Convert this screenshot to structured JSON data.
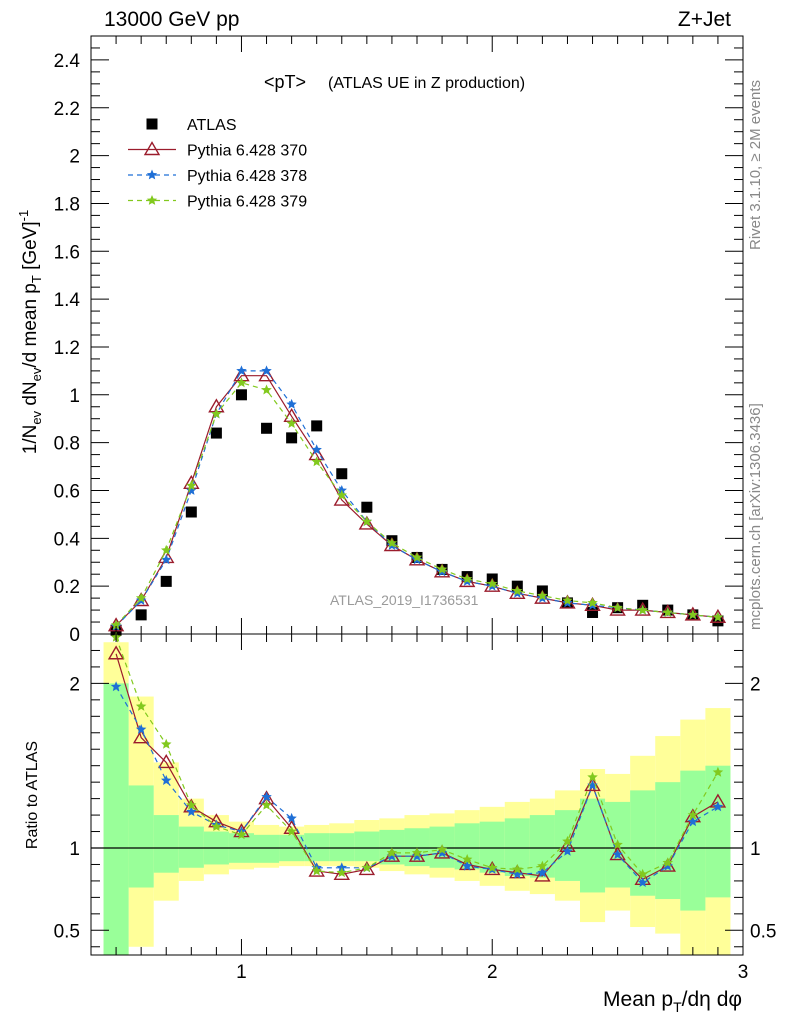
{
  "header": {
    "left": "13000 GeV pp",
    "right": "Z+Jet"
  },
  "side_labels": {
    "rivet": "Rivet 3.1.10, ≥ 2M events",
    "mcplots": "mcplots.cern.ch [arXiv:1306.3436]"
  },
  "watermark": "ATLAS_2019_I1736531",
  "chart_data": [
    {
      "type": "scatter",
      "title_main": "<pT>",
      "title_sub": "(ATLAS UE in Z production)",
      "ylabel": "1/Nₑᵥ dNₑᵥ/d mean pᵀ [GeV]⁻¹",
      "xlim": [
        0.4,
        3.0
      ],
      "ylim": [
        0,
        2.5
      ],
      "yticks": [
        "0",
        "0.2",
        "0.4",
        "0.6",
        "0.8",
        "1",
        "1.2",
        "1.4",
        "1.6",
        "1.8",
        "2",
        "2.2",
        "2.4"
      ],
      "grid": false,
      "legend_position": "top-left",
      "x": [
        0.5,
        0.6,
        0.7,
        0.8,
        0.9,
        1.0,
        1.1,
        1.2,
        1.3,
        1.4,
        1.5,
        1.6,
        1.7,
        1.8,
        1.9,
        2.0,
        2.1,
        2.2,
        2.3,
        2.4,
        2.5,
        2.6,
        2.7,
        2.8,
        2.9
      ],
      "series": [
        {
          "name": "ATLAS",
          "color": "#000000",
          "marker": "square",
          "values": [
            0.016,
            0.08,
            0.22,
            0.51,
            0.84,
            1.0,
            0.86,
            0.82,
            0.87,
            0.67,
            0.53,
            0.39,
            0.32,
            0.27,
            0.24,
            0.23,
            0.2,
            0.18,
            0.13,
            0.09,
            0.11,
            0.12,
            0.1,
            0.08,
            0.055
          ]
        },
        {
          "name": "Pythia 6.428 370",
          "color": "#9b1c2c",
          "marker": "triangle",
          "dash": "none",
          "values": [
            0.035,
            0.14,
            0.32,
            0.63,
            0.95,
            1.08,
            1.08,
            0.91,
            0.75,
            0.56,
            0.46,
            0.37,
            0.31,
            0.26,
            0.22,
            0.2,
            0.17,
            0.15,
            0.13,
            0.12,
            0.1,
            0.1,
            0.09,
            0.08,
            0.07
          ]
        },
        {
          "name": "Pythia 6.428 378",
          "color": "#1f6fd6",
          "marker": "star",
          "dash": "5,4",
          "values": [
            0.032,
            0.14,
            0.31,
            0.6,
            0.92,
            1.1,
            1.1,
            0.96,
            0.77,
            0.6,
            0.47,
            0.37,
            0.31,
            0.26,
            0.22,
            0.2,
            0.17,
            0.15,
            0.13,
            0.12,
            0.11,
            0.1,
            0.09,
            0.08,
            0.07
          ]
        },
        {
          "name": "Pythia 6.428 379",
          "color": "#82c91e",
          "marker": "star",
          "dash": "5,4",
          "values": [
            0.037,
            0.15,
            0.35,
            0.62,
            0.92,
            1.05,
            1.02,
            0.88,
            0.72,
            0.58,
            0.47,
            0.38,
            0.32,
            0.27,
            0.23,
            0.21,
            0.18,
            0.16,
            0.14,
            0.13,
            0.11,
            0.1,
            0.09,
            0.08,
            0.07
          ]
        }
      ]
    },
    {
      "type": "line",
      "ylabel": "Ratio to ATLAS",
      "xlabel": "Mean pᵀ/dη dφ",
      "xlim": [
        0.4,
        3.0
      ],
      "ylim": [
        0.35,
        2.3
      ],
      "xticks": [
        "1",
        "2",
        "3"
      ],
      "yticks": [
        "0.5",
        "1",
        "2"
      ],
      "bin_edges": [
        0.45,
        0.55,
        0.65,
        0.75,
        0.85,
        0.95,
        1.05,
        1.15,
        1.25,
        1.35,
        1.45,
        1.55,
        1.65,
        1.75,
        1.85,
        1.95,
        2.05,
        2.15,
        2.25,
        2.35,
        2.45,
        2.55,
        2.65,
        2.75,
        2.85,
        2.95
      ],
      "band_yellow": {
        "color": "#ffff99",
        "low": [
          0.3,
          0.4,
          0.68,
          0.8,
          0.84,
          0.87,
          0.88,
          0.89,
          0.89,
          0.89,
          0.88,
          0.86,
          0.84,
          0.82,
          0.8,
          0.77,
          0.74,
          0.72,
          0.68,
          0.55,
          0.62,
          0.52,
          0.48,
          0.3,
          0.3
        ],
        "high": [
          2.25,
          1.92,
          1.52,
          1.3,
          1.2,
          1.16,
          1.14,
          1.13,
          1.14,
          1.15,
          1.17,
          1.18,
          1.2,
          1.21,
          1.23,
          1.25,
          1.28,
          1.3,
          1.35,
          1.48,
          1.45,
          1.56,
          1.68,
          1.78,
          1.85
        ]
      },
      "band_green": {
        "color": "#99ff99",
        "low": [
          0.33,
          0.76,
          0.85,
          0.88,
          0.9,
          0.91,
          0.91,
          0.92,
          0.92,
          0.92,
          0.92,
          0.9,
          0.89,
          0.88,
          0.87,
          0.85,
          0.83,
          0.82,
          0.8,
          0.73,
          0.76,
          0.71,
          0.69,
          0.62,
          0.7
        ],
        "high": [
          2.0,
          1.38,
          1.2,
          1.13,
          1.1,
          1.09,
          1.08,
          1.08,
          1.09,
          1.09,
          1.1,
          1.11,
          1.12,
          1.13,
          1.15,
          1.16,
          1.18,
          1.2,
          1.23,
          1.3,
          1.28,
          1.35,
          1.4,
          1.47,
          1.5
        ]
      },
      "x": [
        0.5,
        0.6,
        0.7,
        0.8,
        0.9,
        1.0,
        1.1,
        1.2,
        1.3,
        1.4,
        1.5,
        1.6,
        1.7,
        1.8,
        1.9,
        2.0,
        2.1,
        2.2,
        2.3,
        2.4,
        2.5,
        2.6,
        2.7,
        2.8,
        2.9
      ],
      "series": [
        {
          "name": "Pythia 6.428 370",
          "color": "#9b1c2c",
          "marker": "triangle",
          "dash": "none",
          "values": [
            2.18,
            1.67,
            1.52,
            1.25,
            1.16,
            1.1,
            1.3,
            1.12,
            0.86,
            0.84,
            0.87,
            0.95,
            0.95,
            0.97,
            0.9,
            0.87,
            0.85,
            0.83,
            1.01,
            1.38,
            0.96,
            0.81,
            0.89,
            1.19,
            1.28
          ]
        },
        {
          "name": "Pythia 6.428 378",
          "color": "#1f6fd6",
          "marker": "star",
          "dash": "5,4",
          "values": [
            1.98,
            1.72,
            1.41,
            1.22,
            1.14,
            1.1,
            1.31,
            1.18,
            0.88,
            0.88,
            0.88,
            0.95,
            0.95,
            0.97,
            0.89,
            0.87,
            0.84,
            0.85,
            0.98,
            1.38,
            0.96,
            0.79,
            0.89,
            1.16,
            1.25
          ]
        },
        {
          "name": "Pythia 6.428 379",
          "color": "#82c91e",
          "marker": "star",
          "dash": "5,4",
          "values": [
            2.28,
            1.86,
            1.63,
            1.26,
            1.13,
            1.08,
            1.26,
            1.1,
            0.86,
            0.85,
            0.88,
            0.97,
            0.97,
            0.99,
            0.93,
            0.88,
            0.87,
            0.89,
            1.04,
            1.43,
            1.02,
            0.84,
            0.91,
            1.2,
            1.46
          ]
        }
      ]
    }
  ]
}
